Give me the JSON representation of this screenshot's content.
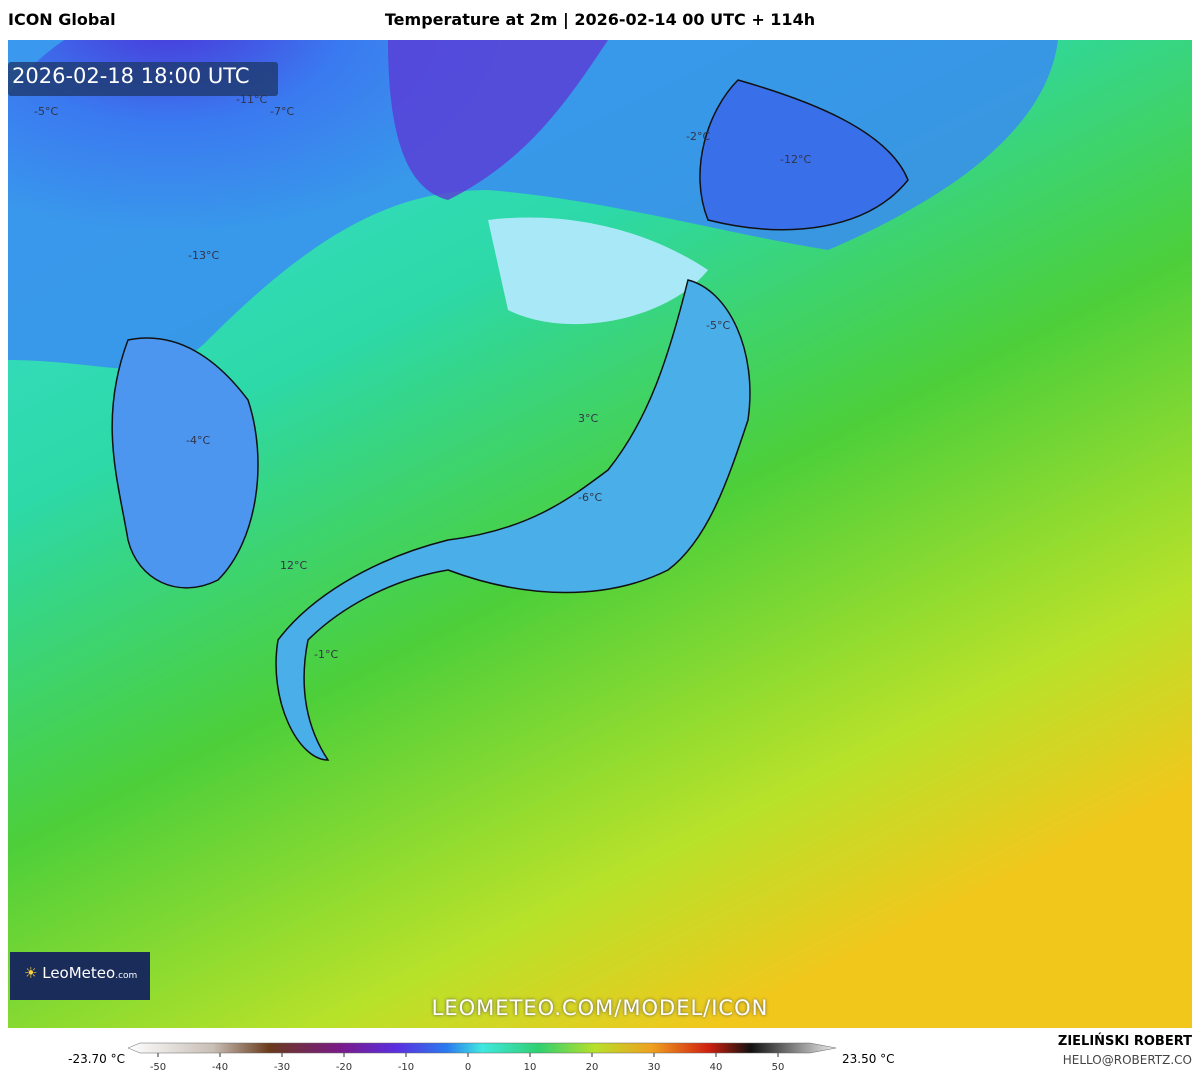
{
  "header": {
    "model": "ICON Global",
    "title": "Temperature at 2m | 2026-02-14 00 UTC + 114h"
  },
  "map": {
    "valid_time": "2026-02-18 18:00 UTC",
    "labels": [
      "-5°C",
      "-11°C",
      "-7°C",
      "-2°C",
      "-12°C",
      "-13°C",
      "-5°C",
      "3°C",
      "-4°C",
      "-6°C",
      "12°C",
      "-1°C"
    ],
    "logo": "LeoMeteo",
    "logo_suffix": ".com",
    "watermark": "LEOMETEO.COM/MODEL/ICON"
  },
  "colorbar": {
    "min_label": "-23.70 °C",
    "max_label": "23.50 °C",
    "ticks": [
      -50,
      -40,
      -30,
      -20,
      -10,
      0,
      10,
      20,
      30,
      40,
      50
    ]
  },
  "footer": {
    "author": "ZIELIŃSKI ROBERT",
    "contact": "HELLO@ROBERTZ.CO"
  }
}
